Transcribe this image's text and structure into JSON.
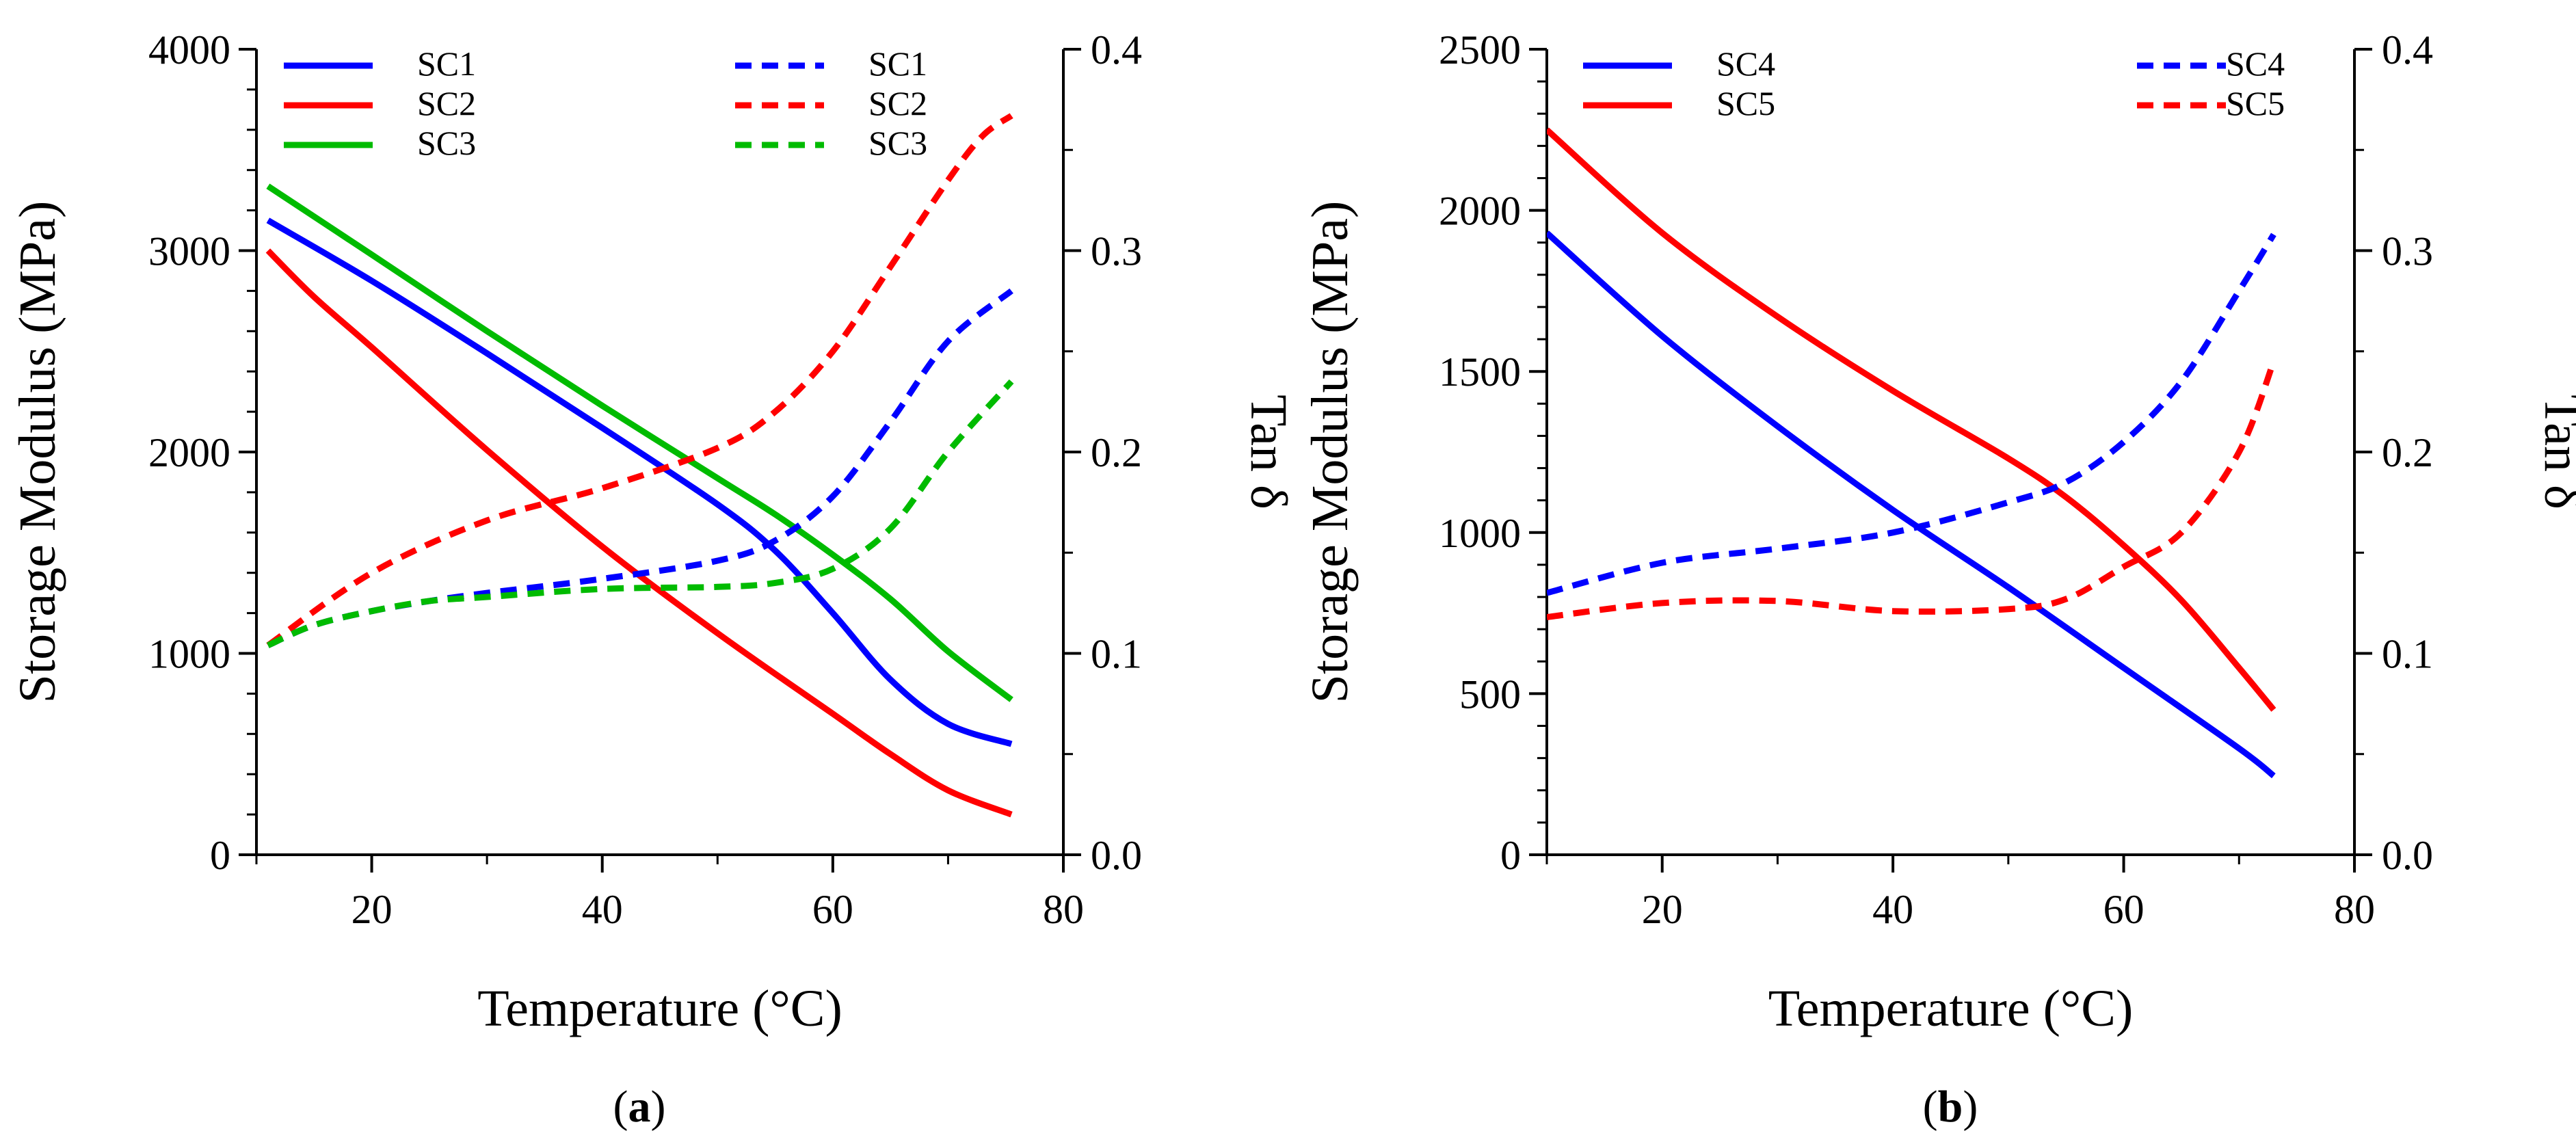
{
  "chart_data": [
    {
      "type": "line",
      "panel_label_open": "(",
      "panel_label_letter": "a",
      "panel_label_close": ")",
      "xlabel": "Temperature (°C)",
      "ylabel": "Storage Modulus (MPa)",
      "y2label": "Tan δ",
      "xlim": [
        10,
        80
      ],
      "ylim": [
        0,
        4000
      ],
      "y2lim": [
        0.0,
        0.4
      ],
      "xticks": [
        "20",
        "40",
        "60",
        "80"
      ],
      "yticks": [
        "0",
        "1000",
        "2000",
        "3000",
        "4000"
      ],
      "y2ticks": [
        "0.0",
        "0.1",
        "0.2",
        "0.3",
        "0.4"
      ],
      "legend_position": "top",
      "series": [
        {
          "name": "SC1",
          "axis": "left",
          "style": "solid",
          "color": "#0000ff",
          "x": [
            11,
            20,
            30,
            40,
            50,
            55,
            60,
            65,
            70,
            75.5
          ],
          "y": [
            3150,
            2850,
            2490,
            2120,
            1740,
            1510,
            1200,
            870,
            650,
            550
          ]
        },
        {
          "name": "SC2",
          "axis": "left",
          "style": "solid",
          "color": "#ff0000",
          "x": [
            11,
            15,
            20,
            30,
            40,
            50,
            60,
            65,
            70,
            75.5
          ],
          "y": [
            3000,
            2770,
            2520,
            2010,
            1530,
            1100,
            700,
            500,
            320,
            200
          ]
        },
        {
          "name": "SC3",
          "axis": "left",
          "style": "solid",
          "color": "#00bb00",
          "x": [
            11,
            20,
            30,
            40,
            50,
            55,
            60,
            65,
            70,
            75.5
          ],
          "y": [
            3320,
            2980,
            2600,
            2230,
            1870,
            1690,
            1490,
            1270,
            1010,
            770
          ]
        },
        {
          "name": "SC1",
          "axis": "right",
          "style": "dashed",
          "color": "#0000ff",
          "x": [
            11,
            15,
            20,
            25,
            30,
            40,
            50,
            55,
            60,
            65,
            70,
            75.5
          ],
          "y": [
            0.104,
            0.114,
            0.121,
            0.126,
            0.13,
            0.137,
            0.146,
            0.156,
            0.178,
            0.215,
            0.255,
            0.28
          ]
        },
        {
          "name": "SC2",
          "axis": "right",
          "style": "dashed",
          "color": "#ff0000",
          "x": [
            11,
            20,
            30,
            40,
            50,
            55,
            60,
            65,
            70,
            73,
            75.5
          ],
          "y": [
            0.104,
            0.14,
            0.166,
            0.182,
            0.202,
            0.22,
            0.25,
            0.292,
            0.335,
            0.357,
            0.367
          ]
        },
        {
          "name": "SC3",
          "axis": "right",
          "style": "dashed",
          "color": "#00bb00",
          "x": [
            11,
            15,
            20,
            25,
            30,
            40,
            50,
            55,
            60,
            65,
            70,
            75.5
          ],
          "y": [
            0.104,
            0.114,
            0.121,
            0.126,
            0.128,
            0.132,
            0.133,
            0.135,
            0.142,
            0.162,
            0.2,
            0.235
          ]
        }
      ]
    },
    {
      "type": "line",
      "panel_label_open": "(",
      "panel_label_letter": "b",
      "panel_label_close": ")",
      "xlabel": "Temperature (°C)",
      "ylabel": "Storage Modulus (MPa)",
      "y2label": "Tan δ",
      "xlim": [
        10,
        80
      ],
      "ylim": [
        0,
        2500
      ],
      "y2lim": [
        0.0,
        0.4
      ],
      "xticks": [
        "20",
        "40",
        "60",
        "80"
      ],
      "yticks": [
        "0",
        "500",
        "1000",
        "1500",
        "2000",
        "2500"
      ],
      "y2ticks": [
        "0.0",
        "0.1",
        "0.2",
        "0.3",
        "0.4"
      ],
      "legend_position": "top",
      "series": [
        {
          "name": "SC4",
          "axis": "left",
          "style": "solid",
          "color": "#0000ff",
          "x": [
            10,
            20,
            30,
            40,
            50,
            60,
            70,
            73
          ],
          "y": [
            1930,
            1610,
            1330,
            1070,
            830,
            580,
            330,
            245
          ]
        },
        {
          "name": "SC5",
          "axis": "left",
          "style": "solid",
          "color": "#ff0000",
          "x": [
            10,
            20,
            30,
            40,
            50,
            55,
            60,
            65,
            70,
            73
          ],
          "y": [
            2250,
            1930,
            1670,
            1440,
            1230,
            1110,
            960,
            790,
            580,
            450
          ]
        },
        {
          "name": "SC4",
          "axis": "right",
          "style": "dashed",
          "color": "#0000ff",
          "x": [
            10,
            20,
            30,
            40,
            50,
            55,
            60,
            65,
            70,
            73
          ],
          "y": [
            0.13,
            0.145,
            0.152,
            0.16,
            0.175,
            0.185,
            0.205,
            0.235,
            0.28,
            0.308
          ]
        },
        {
          "name": "SC5",
          "axis": "right",
          "style": "dashed",
          "color": "#ff0000",
          "x": [
            10,
            20,
            30,
            40,
            50,
            55,
            60,
            65,
            70,
            73
          ],
          "y": [
            0.118,
            0.125,
            0.126,
            0.121,
            0.122,
            0.127,
            0.143,
            0.16,
            0.2,
            0.245
          ]
        }
      ]
    }
  ]
}
